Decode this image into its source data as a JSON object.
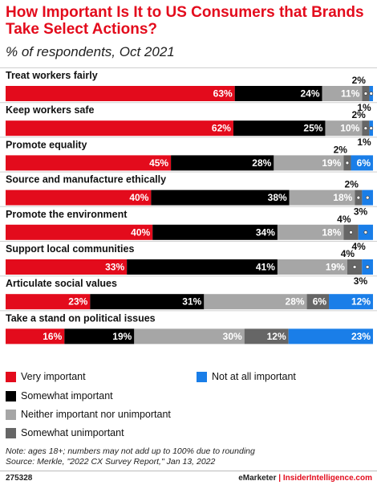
{
  "header": {
    "title": "How Important Is It to US Consumers that Brands Take Select Actions?",
    "subtitle": "% of respondents, Oct 2021"
  },
  "chart_data": {
    "type": "bar",
    "orientation": "horizontal-stacked",
    "categories": [
      "Treat workers fairly",
      "Keep workers safe",
      "Promote equality",
      "Source and manufacture ethically",
      "Promote the environment",
      "Support local communities",
      "Articulate social values",
      "Take a stand on political issues"
    ],
    "series": [
      {
        "name": "Very important",
        "color": "#e30b1c",
        "labels": [
          "63%",
          "62%",
          "45%",
          "40%",
          "40%",
          "33%",
          "23%",
          "16%"
        ],
        "values": [
          63,
          62,
          45,
          40,
          40,
          33,
          23,
          16
        ]
      },
      {
        "name": "Somewhat important",
        "color": "#000000",
        "labels": [
          "24%",
          "25%",
          "28%",
          "38%",
          "34%",
          "41%",
          "31%",
          "19%"
        ],
        "values": [
          24,
          25,
          28,
          38,
          34,
          41,
          31,
          19
        ]
      },
      {
        "name": "Neither important nor unimportant",
        "color": "#a6a6a6",
        "labels": [
          "11%",
          "10%",
          "19%",
          "18%",
          "18%",
          "19%",
          "28%",
          "30%"
        ],
        "values": [
          11,
          10,
          19,
          18,
          18,
          19,
          28,
          30
        ]
      },
      {
        "name": "Somewhat unimportant",
        "color": "#666666",
        "labels": [
          "2%",
          "2%",
          "2%",
          "2%",
          "4%",
          "4%",
          "6%",
          "12%"
        ],
        "values": [
          2,
          2,
          2,
          2,
          4,
          4,
          6,
          12
        ]
      },
      {
        "name": "Not at all important",
        "color": "#1a7ee8",
        "labels": [
          "1%",
          "1%",
          "6%",
          "3%",
          "4%",
          "3%",
          "12%",
          "23%"
        ],
        "values": [
          1,
          1,
          6,
          3,
          4,
          3,
          12,
          23
        ]
      }
    ],
    "xlim": [
      0,
      100
    ],
    "legend": "bottom"
  },
  "legend": {
    "very": "Very important",
    "somewhat": "Somewhat important",
    "neither": "Neither important nor unimportant",
    "somewhat_un": "Somewhat unimportant",
    "not_at_all": "Not at all important"
  },
  "note": {
    "line1": "Note: ages 18+; numbers may not add up to 100% due to rounding",
    "line2": "Source: Merkle, \"2022 CX Survey Report,\" Jan 13, 2022"
  },
  "footer": {
    "id": "275328",
    "brand1": "eMarketer",
    "sep": " | ",
    "brand2": "InsiderIntelligence.com"
  }
}
